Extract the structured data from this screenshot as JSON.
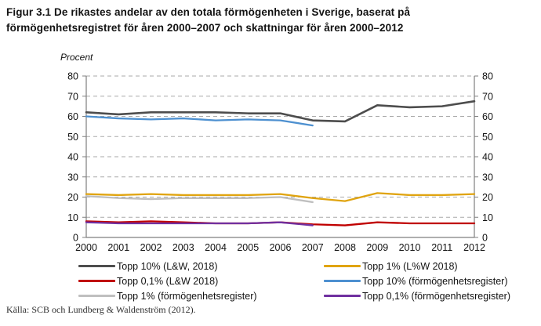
{
  "figure": {
    "title": "Figur 3.1 De rikastes andelar av den totala förmögenheten i Sverige, baserat på\nförmögenhetsregistret för åren 2000–2007 och skattningar för åren 2000–2012",
    "y_axis_unit": "Procent",
    "source": "Källa: SCB och Lundberg & Waldenström (2012)."
  },
  "chart_data": {
    "type": "line",
    "title": "Figur 3.1 De rikastes andelar av den totala förmögenheten i Sverige",
    "xlabel": "",
    "ylabel": "Procent",
    "x": [
      2000,
      2001,
      2002,
      2003,
      2004,
      2005,
      2006,
      2007,
      2008,
      2009,
      2010,
      2011,
      2012
    ],
    "ylim": [
      0,
      80
    ],
    "ytick_step": 10,
    "grid": "horizontal-dashed",
    "legend_position": "bottom-two-columns",
    "grid_color": "#a9a9a9",
    "axis_color": "#7f7f7f",
    "tick_label_color": "#121212",
    "series": [
      {
        "name": "Topp 10% (L&W, 2018)",
        "color": "#4d4d4d",
        "values": [
          62,
          61,
          62,
          62,
          62,
          61.5,
          61.5,
          58,
          57.5,
          65.5,
          64.5,
          65,
          67.5
        ]
      },
      {
        "name": "Topp 1% (L%W 2018)",
        "color": "#e0a410",
        "values": [
          21.5,
          21,
          21.5,
          21,
          21,
          21,
          21.5,
          19.5,
          18,
          22,
          21,
          21,
          21.5
        ]
      },
      {
        "name": "Topp 0,1% (L&W 2018)",
        "color": "#c00000",
        "values": [
          8,
          7.5,
          8,
          7.5,
          7,
          7,
          7.5,
          6.5,
          6,
          7.5,
          7,
          7,
          7
        ]
      },
      {
        "name": "Topp 10% (förmögenhetsregister)",
        "color": "#4d90d0",
        "values": [
          60,
          59,
          58.5,
          59,
          58,
          58.5,
          58,
          55.5,
          null,
          null,
          null,
          null,
          null
        ]
      },
      {
        "name": "Topp 1% (förmögenhetsregister)",
        "color": "#bfbfbf",
        "values": [
          20.5,
          19.5,
          19,
          19.5,
          19.5,
          19.5,
          20,
          17.5,
          null,
          null,
          null,
          null,
          null
        ]
      },
      {
        "name": "Topp 0,1% (förmögenhetsregister)",
        "color": "#7030a0",
        "values": [
          7.5,
          7,
          7,
          7,
          7,
          7,
          7.5,
          6,
          null,
          null,
          null,
          null,
          null
        ]
      }
    ]
  }
}
